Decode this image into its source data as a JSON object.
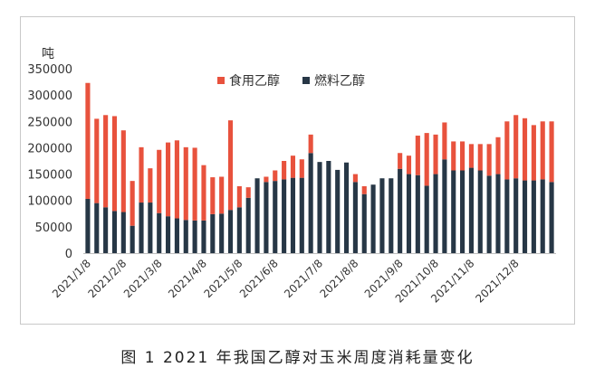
{
  "caption": "图 1  2021 年我国乙醇对玉米周度消耗量变化",
  "colors": {
    "food": "#e8523d",
    "fuel": "#273746",
    "axis": "#bfbfbf"
  },
  "chart_data": {
    "type": "bar",
    "stacked": true,
    "ylabel": "吨",
    "ylim": [
      0,
      350000
    ],
    "yticks": [
      "0",
      "50000",
      "100000",
      "150000",
      "200000",
      "250000",
      "300000",
      "350000"
    ],
    "grid": false,
    "legend_position": "top-center",
    "xtick_labels": [
      "2021/1/8",
      "2021/2/8",
      "2021/3/8",
      "2021/4/8",
      "2021/5/8",
      "2021/6/8",
      "2021/7/8",
      "2021/8/8",
      "2021/9/8",
      "2021/10/8",
      "2021/11/8",
      "2021/12/8"
    ],
    "xtick_index": [
      0,
      4,
      8,
      13,
      17,
      21,
      26,
      30,
      35,
      39,
      43,
      48
    ],
    "series": [
      {
        "name": "食用乙醇",
        "values": [
          220000,
          160000,
          175000,
          180000,
          155000,
          85000,
          105000,
          65000,
          120000,
          140000,
          148000,
          138000,
          138000,
          105000,
          70000,
          70000,
          170000,
          40000,
          20000,
          0,
          10000,
          20000,
          35000,
          42000,
          35000,
          35000,
          0,
          0,
          0,
          0,
          15000,
          15000,
          0,
          0,
          0,
          30000,
          35000,
          75000,
          100000,
          75000,
          70000,
          55000,
          55000,
          45000,
          50000,
          60000,
          70000,
          110000,
          120000,
          118000,
          105000,
          110000,
          115000
        ]
      },
      {
        "name": "燃料乙醇",
        "values": [
          103000,
          95000,
          87000,
          80000,
          78000,
          52000,
          96000,
          96000,
          76000,
          70000,
          66000,
          63000,
          62000,
          62000,
          74000,
          75000,
          82000,
          87000,
          105000,
          142000,
          135000,
          137000,
          140000,
          143000,
          143000,
          190000,
          173000,
          175000,
          158000,
          172000,
          135000,
          112000,
          130000,
          142000,
          142000,
          160000,
          150000,
          148000,
          128000,
          150000,
          178000,
          157000,
          157000,
          162000,
          157000,
          147000,
          150000,
          140000,
          142000,
          138000,
          138000,
          140000,
          135000
        ]
      }
    ]
  }
}
